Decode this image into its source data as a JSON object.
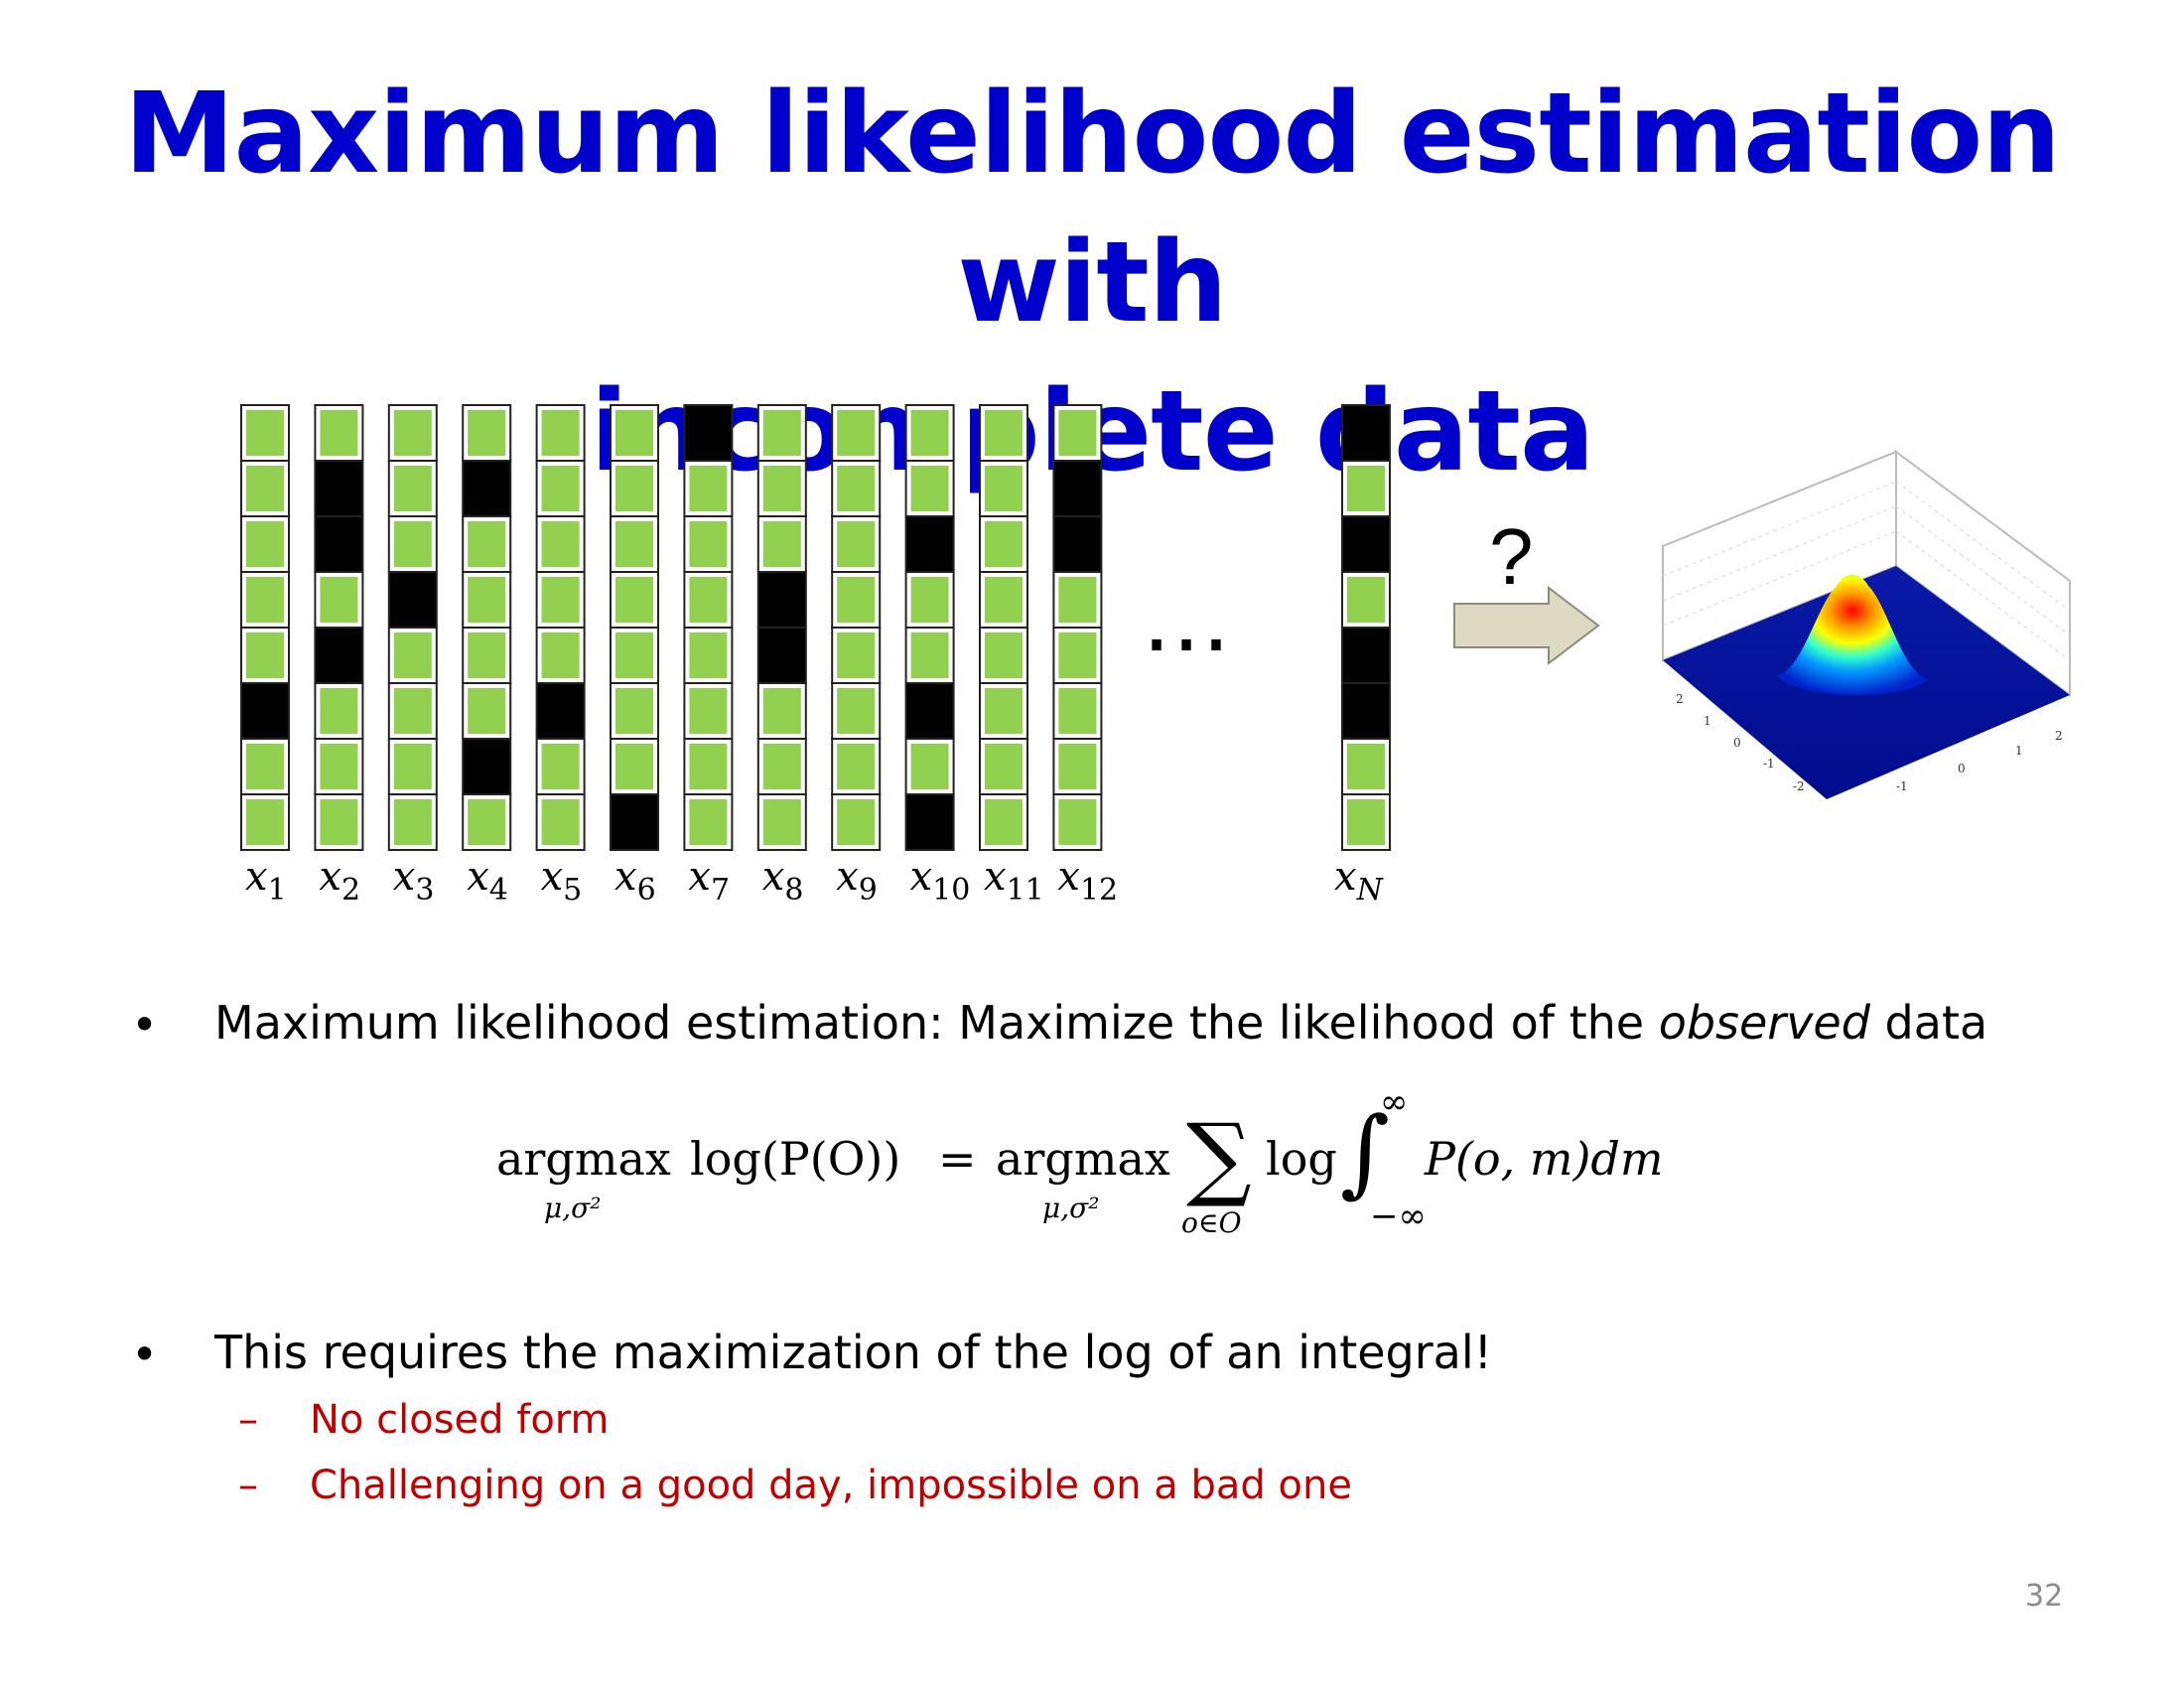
{
  "slide": {
    "title_line1": "Maximum likelihood estimation with",
    "title_line2": "incomplete data",
    "page_number": "32"
  },
  "figure": {
    "colors": {
      "observed": "#92d050",
      "missing": "#000000",
      "arrow_fill": "#ddd9c3"
    },
    "vector_labels": [
      "x1",
      "x2",
      "x3",
      "x4",
      "x5",
      "x6",
      "x7",
      "x8",
      "x9",
      "x10",
      "x11",
      "x12"
    ],
    "last_vector_label": "xN",
    "ellipsis": "…",
    "question_mark": "?",
    "missing_pattern": [
      [
        0,
        0,
        0,
        0,
        0,
        1,
        0,
        0
      ],
      [
        0,
        1,
        1,
        0,
        1,
        0,
        0,
        0
      ],
      [
        0,
        0,
        0,
        1,
        0,
        0,
        0,
        0
      ],
      [
        0,
        1,
        0,
        0,
        0,
        0,
        1,
        0
      ],
      [
        0,
        0,
        0,
        0,
        0,
        1,
        0,
        0
      ],
      [
        0,
        0,
        0,
        0,
        0,
        0,
        0,
        1
      ],
      [
        1,
        0,
        0,
        0,
        0,
        0,
        0,
        0
      ],
      [
        0,
        0,
        0,
        1,
        1,
        0,
        0,
        0
      ],
      [
        0,
        0,
        0,
        0,
        0,
        0,
        0,
        0
      ],
      [
        0,
        0,
        1,
        0,
        0,
        1,
        0,
        1
      ],
      [
        0,
        0,
        0,
        0,
        0,
        0,
        0,
        0
      ],
      [
        0,
        1,
        1,
        0,
        0,
        0,
        0,
        0
      ]
    ],
    "last_missing_pattern": [
      1,
      0,
      1,
      0,
      1,
      1,
      0,
      0
    ],
    "surface_tick_labels": {
      "left_axis": [
        "2",
        "1",
        "0",
        "-1",
        "-2"
      ],
      "right_axis": [
        "-1",
        "0",
        "1",
        "2"
      ]
    }
  },
  "bullets": [
    {
      "text_before": "Maximum likelihood estimation: Maximize the likelihood of the ",
      "text_italic": "observed",
      "text_after": " data"
    },
    {
      "text": "This requires the maximization of the log of an integral!"
    }
  ],
  "sub_bullets": [
    {
      "dash": "–",
      "text": "No closed form"
    },
    {
      "dash": "–",
      "text": "Challenging on a good day,  impossible on a bad one"
    }
  ],
  "equation": {
    "lhs_op": "argmax",
    "lhs_sub": "μ,σ²",
    "lhs_body": "log(P(O))",
    "equals": "=",
    "rhs_op": "argmax",
    "rhs_sub": "μ,σ²",
    "sum_symbol": "∑",
    "sum_sub": "o∈O",
    "log": "log",
    "integral": "∫",
    "int_upper": "∞",
    "int_lower": "−∞",
    "integrand": "P(o, m)dm"
  },
  "bullet_char": "•"
}
